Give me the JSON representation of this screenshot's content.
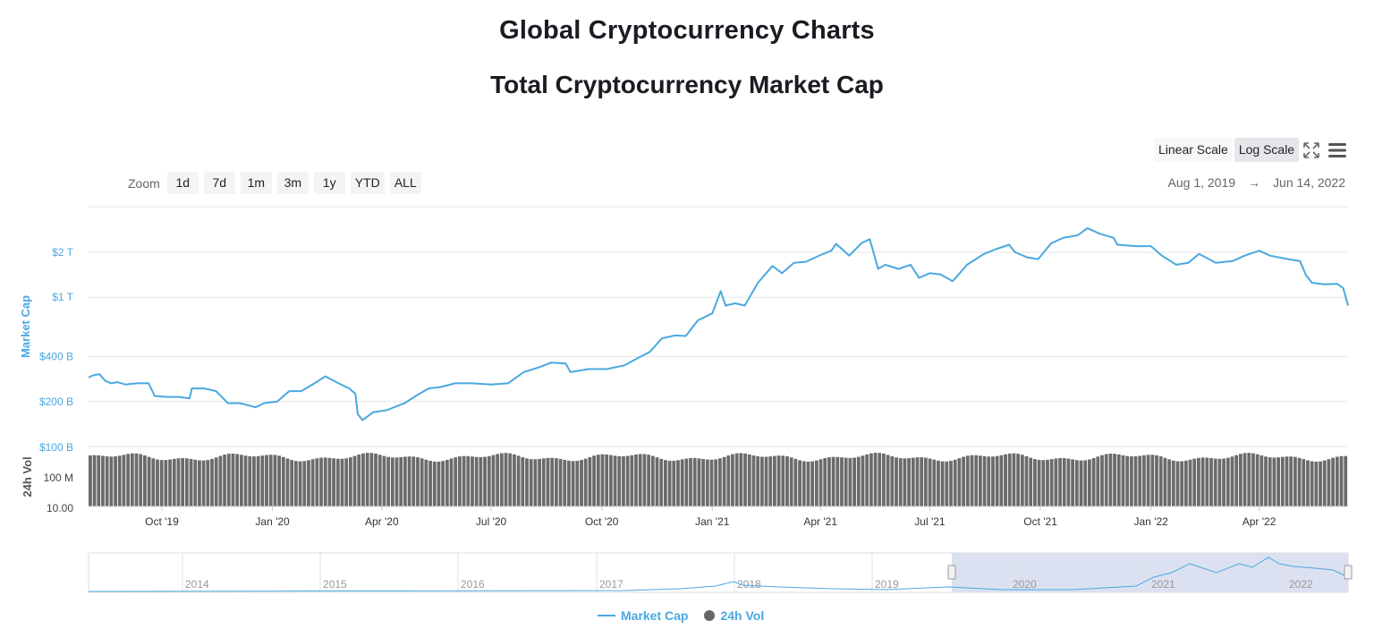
{
  "page_title": "Global Cryptocurrency Charts",
  "chart_title": "Total Cryptocurrency Market Cap",
  "scale": {
    "linear_label": "Linear Scale",
    "log_label": "Log Scale",
    "active": "log"
  },
  "zoom": {
    "label": "Zoom",
    "buttons": [
      "1d",
      "7d",
      "1m",
      "3m",
      "1y",
      "YTD",
      "ALL"
    ]
  },
  "range": {
    "from": "Aug 1, 2019",
    "arrow": "→",
    "to": "Jun 14, 2022"
  },
  "legend": {
    "market_cap": "Market Cap",
    "volume": "24h Vol"
  },
  "colors": {
    "market_cap": "#4aa8e0",
    "volume": "#6b6b6b",
    "navigator_mask": "#d8deef"
  },
  "chart_data": {
    "type": "line",
    "title": "Total Cryptocurrency Market Cap",
    "y_axis": {
      "label": "Market Cap",
      "scale": "log",
      "ticks": [
        {
          "value": 200000000000,
          "label": "$200 B"
        },
        {
          "value": 400000000000,
          "label": "$400 B"
        },
        {
          "value": 1000000000000,
          "label": "$1 T"
        },
        {
          "value": 2000000000000,
          "label": "$2 T"
        }
      ],
      "range": [
        130000000000,
        3500000000000
      ]
    },
    "volume_axis": {
      "label": "24h Vol",
      "ticks": [
        "$100 B",
        "100 M",
        "10.00"
      ]
    },
    "x_axis": {
      "range": [
        "2019-08-01",
        "2022-06-14"
      ],
      "ticks": [
        {
          "date": "2019-10-01",
          "label": "Oct '19"
        },
        {
          "date": "2020-01-01",
          "label": "Jan '20"
        },
        {
          "date": "2020-04-01",
          "label": "Apr '20"
        },
        {
          "date": "2020-07-01",
          "label": "Jul '20"
        },
        {
          "date": "2020-10-01",
          "label": "Oct '20"
        },
        {
          "date": "2021-01-01",
          "label": "Jan '21"
        },
        {
          "date": "2021-04-01",
          "label": "Apr '21"
        },
        {
          "date": "2021-07-01",
          "label": "Jul '21"
        },
        {
          "date": "2021-10-01",
          "label": "Oct '21"
        },
        {
          "date": "2022-01-01",
          "label": "Jan '22"
        },
        {
          "date": "2022-04-01",
          "label": "Apr '22"
        }
      ]
    },
    "series": [
      {
        "name": "Market Cap",
        "unit": "USD billions",
        "points": [
          [
            "2019-08-01",
            290
          ],
          [
            "2019-08-05",
            300
          ],
          [
            "2019-08-10",
            305
          ],
          [
            "2019-08-15",
            275
          ],
          [
            "2019-08-20",
            265
          ],
          [
            "2019-08-25",
            270
          ],
          [
            "2019-09-01",
            260
          ],
          [
            "2019-09-10",
            265
          ],
          [
            "2019-09-20",
            265
          ],
          [
            "2019-09-25",
            218
          ],
          [
            "2019-10-05",
            215
          ],
          [
            "2019-10-15",
            215
          ],
          [
            "2019-10-24",
            210
          ],
          [
            "2019-10-26",
            245
          ],
          [
            "2019-11-05",
            245
          ],
          [
            "2019-11-15",
            235
          ],
          [
            "2019-11-25",
            195
          ],
          [
            "2019-12-05",
            195
          ],
          [
            "2019-12-18",
            183
          ],
          [
            "2019-12-25",
            195
          ],
          [
            "2020-01-05",
            200
          ],
          [
            "2020-01-15",
            235
          ],
          [
            "2020-01-25",
            235
          ],
          [
            "2020-02-05",
            265
          ],
          [
            "2020-02-14",
            295
          ],
          [
            "2020-02-25",
            265
          ],
          [
            "2020-03-05",
            245
          ],
          [
            "2020-03-10",
            225
          ],
          [
            "2020-03-12",
            165
          ],
          [
            "2020-03-16",
            150
          ],
          [
            "2020-03-25",
            170
          ],
          [
            "2020-04-05",
            175
          ],
          [
            "2020-04-20",
            195
          ],
          [
            "2020-04-30",
            220
          ],
          [
            "2020-05-10",
            245
          ],
          [
            "2020-05-20",
            250
          ],
          [
            "2020-06-01",
            265
          ],
          [
            "2020-06-15",
            265
          ],
          [
            "2020-07-01",
            260
          ],
          [
            "2020-07-15",
            265
          ],
          [
            "2020-07-28",
            315
          ],
          [
            "2020-08-10",
            340
          ],
          [
            "2020-08-20",
            365
          ],
          [
            "2020-09-01",
            360
          ],
          [
            "2020-09-05",
            315
          ],
          [
            "2020-09-20",
            330
          ],
          [
            "2020-10-05",
            330
          ],
          [
            "2020-10-20",
            350
          ],
          [
            "2020-11-01",
            395
          ],
          [
            "2020-11-10",
            430
          ],
          [
            "2020-11-20",
            530
          ],
          [
            "2020-12-01",
            555
          ],
          [
            "2020-12-10",
            550
          ],
          [
            "2020-12-20",
            700
          ],
          [
            "2021-01-01",
            780
          ],
          [
            "2021-01-08",
            1100
          ],
          [
            "2021-01-12",
            880
          ],
          [
            "2021-01-20",
            910
          ],
          [
            "2021-01-28",
            880
          ],
          [
            "2021-02-08",
            1250
          ],
          [
            "2021-02-20",
            1620
          ],
          [
            "2021-02-28",
            1450
          ],
          [
            "2021-03-10",
            1700
          ],
          [
            "2021-03-20",
            1730
          ],
          [
            "2021-04-01",
            1920
          ],
          [
            "2021-04-10",
            2050
          ],
          [
            "2021-04-14",
            2280
          ],
          [
            "2021-04-25",
            1900
          ],
          [
            "2021-05-05",
            2300
          ],
          [
            "2021-05-12",
            2450
          ],
          [
            "2021-05-19",
            1550
          ],
          [
            "2021-05-25",
            1650
          ],
          [
            "2021-06-05",
            1550
          ],
          [
            "2021-06-15",
            1650
          ],
          [
            "2021-06-22",
            1350
          ],
          [
            "2021-07-01",
            1450
          ],
          [
            "2021-07-10",
            1420
          ],
          [
            "2021-07-20",
            1280
          ],
          [
            "2021-08-01",
            1650
          ],
          [
            "2021-08-15",
            1950
          ],
          [
            "2021-08-25",
            2100
          ],
          [
            "2021-09-05",
            2250
          ],
          [
            "2021-09-10",
            2000
          ],
          [
            "2021-09-20",
            1850
          ],
          [
            "2021-09-29",
            1800
          ],
          [
            "2021-10-10",
            2300
          ],
          [
            "2021-10-20",
            2500
          ],
          [
            "2021-11-01",
            2600
          ],
          [
            "2021-11-09",
            2900
          ],
          [
            "2021-11-20",
            2650
          ],
          [
            "2021-12-01",
            2500
          ],
          [
            "2021-12-04",
            2250
          ],
          [
            "2021-12-20",
            2200
          ],
          [
            "2022-01-01",
            2200
          ],
          [
            "2022-01-10",
            1900
          ],
          [
            "2022-01-22",
            1650
          ],
          [
            "2022-02-01",
            1700
          ],
          [
            "2022-02-10",
            1950
          ],
          [
            "2022-02-24",
            1700
          ],
          [
            "2022-03-10",
            1750
          ],
          [
            "2022-03-20",
            1900
          ],
          [
            "2022-04-01",
            2050
          ],
          [
            "2022-04-10",
            1900
          ],
          [
            "2022-04-25",
            1800
          ],
          [
            "2022-05-05",
            1750
          ],
          [
            "2022-05-10",
            1400
          ],
          [
            "2022-05-15",
            1250
          ],
          [
            "2022-05-25",
            1220
          ],
          [
            "2022-06-05",
            1230
          ],
          [
            "2022-06-10",
            1150
          ],
          [
            "2022-06-14",
            880
          ]
        ]
      },
      {
        "name": "24h Vol",
        "bars": "daily, roughly uniform height"
      }
    ],
    "navigator": {
      "year_labels": [
        "2014",
        "2015",
        "2016",
        "2017",
        "2018",
        "2019",
        "2020",
        "2021",
        "2022"
      ],
      "selected_range": [
        "2019-08-01",
        "2022-06-14"
      ]
    }
  }
}
